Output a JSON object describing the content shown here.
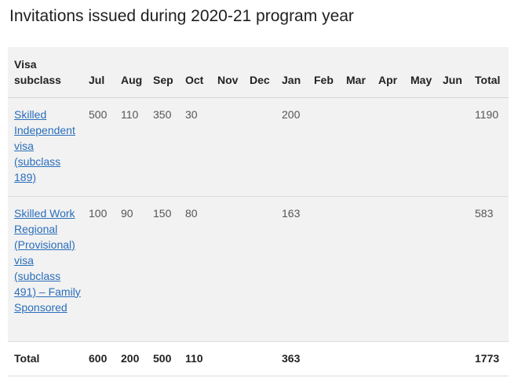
{
  "title": "Invitations issued during 2020-21 program year",
  "table": {
    "headers": [
      "Visa subclass",
      "Jul",
      "Aug",
      "Sep",
      "Oct",
      "Nov",
      "Dec",
      "Jan",
      "Feb",
      "Mar",
      "Apr",
      "May",
      "Jun",
      "Total"
    ],
    "rows": [
      {
        "visa": "Skilled Independent visa (subclass 189)",
        "cells": [
          "500",
          "110",
          "350",
          "30",
          "",
          "",
          "200",
          "",
          "",
          "",
          "",
          "",
          "1190"
        ]
      },
      {
        "visa": "Skilled Work Regional (Provisional) visa (subclass 491) – Family Sponsored",
        "cells": [
          "100",
          "90",
          "150",
          "80",
          "",
          "",
          "163",
          "",
          "",
          "",
          "",
          "",
          "583"
        ]
      }
    ],
    "footer": {
      "label": "Total",
      "cells": [
        "600",
        "200",
        "500",
        "110",
        "",
        "",
        "363",
        "",
        "",
        "",
        "",
        "",
        "1773"
      ]
    }
  },
  "colors": {
    "link": "#2a6ebb",
    "row_background": "#f2f2f2",
    "border": "#dcdcdc"
  }
}
